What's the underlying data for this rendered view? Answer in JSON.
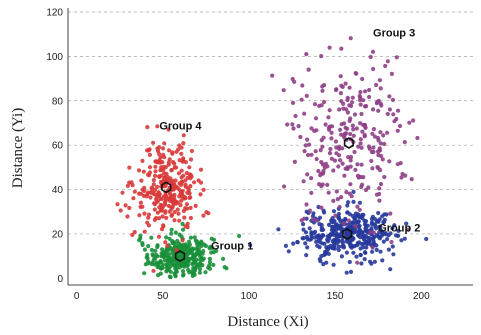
{
  "chart_data": {
    "type": "scatter",
    "xlabel": "Distance (Xi)",
    "ylabel": "Distance (Yi)",
    "xlim": [
      -5,
      230
    ],
    "ylim": [
      -3,
      120
    ],
    "x_ticks": [
      0,
      50,
      100,
      150,
      200
    ],
    "y_ticks": [
      0,
      20,
      40,
      60,
      80,
      100,
      120
    ],
    "grid": "horizontal dashed",
    "groups": [
      {
        "name": "Group 1",
        "color": "#1a8f3a",
        "centroid": [
          60,
          10
        ],
        "spread": [
          9,
          4.5
        ],
        "count": 320
      },
      {
        "name": "Group 2",
        "color": "#283a9c",
        "centroid": [
          157,
          20
        ],
        "spread": [
          14,
          6
        ],
        "count": 380
      },
      {
        "name": "Group 3",
        "color": "#8e3f86",
        "centroid": [
          158,
          61
        ],
        "spread": [
          17,
          18
        ],
        "count": 280
      },
      {
        "name": "Group 4",
        "color": "#d93a3a",
        "centroid": [
          52,
          41
        ],
        "spread": [
          9,
          10
        ],
        "count": 300
      }
    ],
    "labels": [
      {
        "text": "Group 1",
        "x": 78,
        "y": 13
      },
      {
        "text": "Group 2",
        "x": 175,
        "y": 21
      },
      {
        "text": "Group 3",
        "x": 172,
        "y": 109
      },
      {
        "text": "Group 4",
        "x": 48,
        "y": 67
      }
    ]
  }
}
